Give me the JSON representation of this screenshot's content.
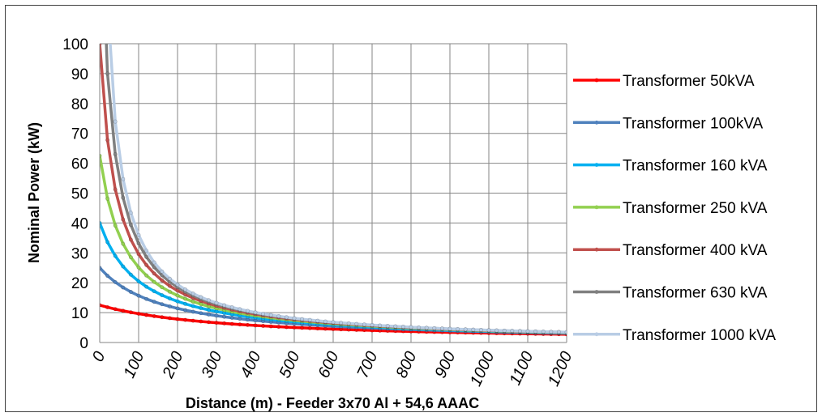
{
  "chart_data": {
    "type": "line",
    "title": "",
    "xlabel": "Distance (m) - Feeder 3x70 Al + 54,6 AAAC",
    "ylabel": "Nominal Power (kW)",
    "xlim": [
      0,
      1200
    ],
    "ylim": [
      0,
      100
    ],
    "x_ticks": [
      "0",
      "100",
      "200",
      "300",
      "400",
      "500",
      "600",
      "700",
      "800",
      "900",
      "1000",
      "1100",
      "1200"
    ],
    "y_ticks": [
      "0",
      "10",
      "20",
      "30",
      "40",
      "50",
      "60",
      "70",
      "80",
      "90",
      "100"
    ],
    "grid": true,
    "legend_position": "right",
    "model": "y = min(cap, 1/(1/cap + x/K))",
    "x_step": 20,
    "K": 4200,
    "series": [
      {
        "name": "Transformer 50kVA",
        "color": "#ff0000",
        "cap": 12.5,
        "marker": "dot"
      },
      {
        "name": "Transformer 100kVA",
        "color": "#4f81bd",
        "cap": 25,
        "marker": "dot"
      },
      {
        "name": "Transformer 160 kVA",
        "color": "#00b0f0",
        "cap": 40,
        "marker": "dot"
      },
      {
        "name": "Transformer 250 kVA",
        "color": "#92d050",
        "cap": 62.5,
        "marker": "dot"
      },
      {
        "name": "Transformer 400 kVA",
        "color": "#c0504d",
        "cap": 100,
        "marker": "dot"
      },
      {
        "name": "Transformer 630 kVA",
        "color": "#808080",
        "cap": 157.5,
        "marker": "dot"
      },
      {
        "name": "Transformer 1000 kVA",
        "color": "#b9cde5",
        "cap": 250,
        "marker": "dot"
      }
    ]
  }
}
